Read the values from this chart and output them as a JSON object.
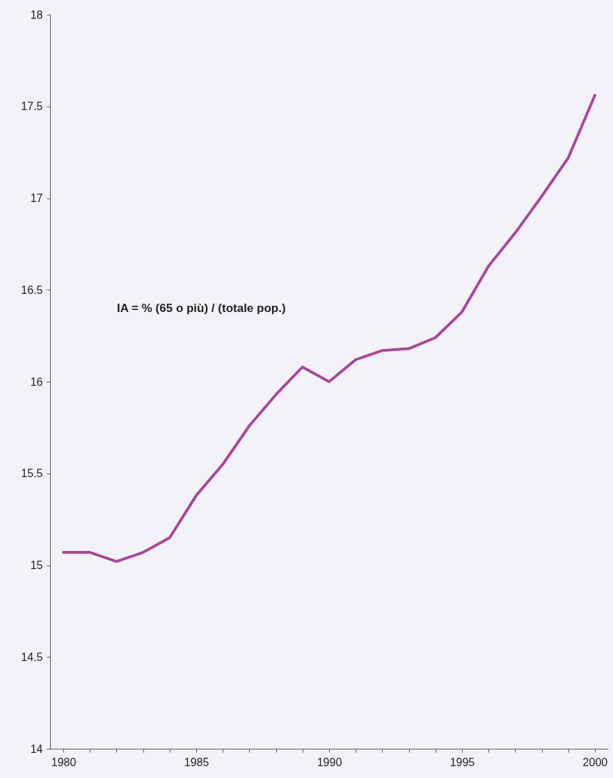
{
  "chart_data": {
    "type": "line",
    "x": [
      1980,
      1981,
      1982,
      1983,
      1984,
      1985,
      1986,
      1987,
      1988,
      1989,
      1990,
      1991,
      1992,
      1993,
      1994,
      1995,
      1996,
      1997,
      1998,
      1999,
      2000
    ],
    "series": [
      {
        "color": "#a9479a",
        "values": [
          15.07,
          15.07,
          15.02,
          15.07,
          15.15,
          15.38,
          15.55,
          15.76,
          15.93,
          16.08,
          16.0,
          16.12,
          16.17,
          16.18,
          16.24,
          16.38,
          16.63,
          16.81,
          17.01,
          17.22,
          17.56
        ]
      }
    ],
    "xlim": [
      1979.5,
      2000.5
    ],
    "xticks": [
      1980,
      {
        "value": 1981,
        "label": null
      },
      {
        "value": 1982,
        "label": null
      },
      {
        "value": 1983,
        "label": null
      },
      {
        "value": 1984,
        "label": null
      },
      1985,
      {
        "value": 1986,
        "label": null
      },
      {
        "value": 1987,
        "label": null
      },
      {
        "value": 1988,
        "label": null
      },
      {
        "value": 1989,
        "label": null
      },
      1990,
      {
        "value": 1991,
        "label": null
      },
      {
        "value": 1992,
        "label": null
      },
      {
        "value": 1993,
        "label": null
      },
      {
        "value": 1994,
        "label": null
      },
      1995,
      {
        "value": 1996,
        "label": null
      },
      {
        "value": 1997,
        "label": null
      },
      {
        "value": 1998,
        "label": null
      },
      {
        "value": 1999,
        "label": null
      },
      2000
    ],
    "ylim": [
      14,
      18
    ],
    "yticks": [
      14,
      14.5,
      15,
      15.5,
      16,
      16.5,
      17,
      17.5,
      18
    ],
    "annotations": [
      "IA = % (65 o più) / (totale pop.)"
    ],
    "grid": false,
    "marker": "none",
    "line_style": "solid"
  }
}
